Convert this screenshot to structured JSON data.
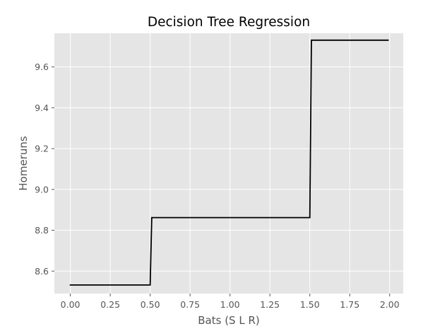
{
  "chart_data": {
    "type": "line",
    "title": "Decision Tree Regression",
    "xlabel": "Bats (S L R)",
    "ylabel": "Homeruns",
    "xlim": [
      -0.1,
      2.085
    ],
    "ylim": [
      8.49,
      9.765
    ],
    "x_ticks": [
      0.0,
      0.25,
      0.5,
      0.75,
      1.0,
      1.25,
      1.5,
      1.75,
      2.0
    ],
    "x_tick_labels": [
      "0.00",
      "0.25",
      "0.50",
      "0.75",
      "1.00",
      "1.25",
      "1.50",
      "1.75",
      "2.00"
    ],
    "y_ticks": [
      8.6,
      8.8,
      9.0,
      9.2,
      9.4,
      9.6
    ],
    "y_tick_labels": [
      "8.6",
      "8.8",
      "9.0",
      "9.2",
      "9.4",
      "9.6"
    ],
    "grid": true,
    "style": "ggplot",
    "colors": {
      "plot_background": "#e5e5e5",
      "grid": "#ffffff",
      "line": "#000000",
      "text": "#555555",
      "title": "#000000"
    },
    "series": [
      {
        "x": [
          0.0,
          0.5,
          0.51,
          1.5,
          1.51,
          1.99
        ],
        "y": [
          8.532,
          8.532,
          8.862,
          8.862,
          9.731,
          9.731
        ],
        "color": "#000000",
        "style": "step"
      }
    ]
  }
}
